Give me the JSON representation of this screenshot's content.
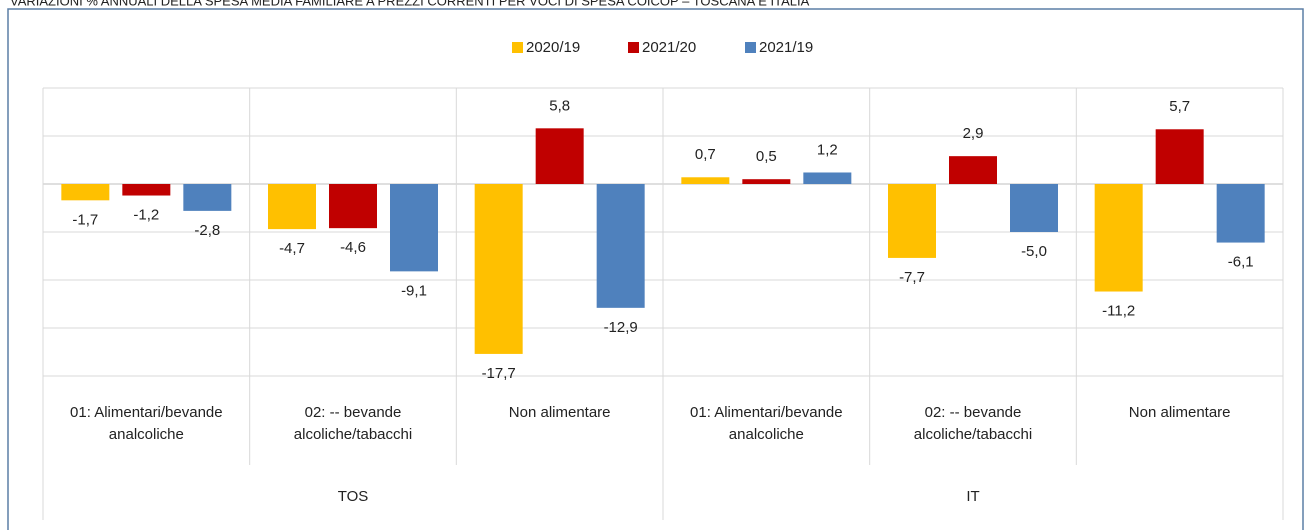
{
  "chart_data": {
    "type": "bar",
    "title": "VARIAZIONI % ANNUALI DELLA SPESA MEDIA FAMILIARE A PREZZI CORRENTI PER VOCI DI SPESA COICOP – TOSCANA E ITALIA",
    "groups": [
      {
        "name": "TOS",
        "size": 3
      },
      {
        "name": "IT",
        "size": 3
      }
    ],
    "categories": [
      "01: Alimentari/bevande analcoliche",
      "02: -- bevande alcoliche/tabacchi",
      "Non alimentare",
      "01: Alimentari/bevande analcoliche",
      "02: -- bevande alcoliche/tabacchi",
      "Non alimentare"
    ],
    "series": [
      {
        "name": "2020/19",
        "color": "#ffc000",
        "values": [
          -1.7,
          -4.7,
          -17.7,
          0.7,
          -7.7,
          -11.2
        ],
        "value_labels": [
          "-1,7",
          "-4,7",
          "-17,7",
          "0,7",
          "-7,7",
          "-11,2"
        ]
      },
      {
        "name": "2021/20",
        "color": "#c00000",
        "values": [
          -1.2,
          -4.6,
          5.8,
          0.5,
          2.9,
          5.7
        ],
        "value_labels": [
          "-1,2",
          "-4,6",
          "5,8",
          "0,5",
          "2,9",
          "5,7"
        ]
      },
      {
        "name": "2021/19",
        "color": "#4f81bd",
        "values": [
          -2.8,
          -9.1,
          -12.9,
          1.2,
          -5.0,
          -6.1
        ],
        "value_labels": [
          "-2,8",
          "-9,1",
          "-12,9",
          "1,2",
          "-5,0",
          "-6,1"
        ]
      }
    ],
    "ylim": [
      -20,
      10
    ],
    "yticks": [
      -20,
      -15,
      -10,
      -5,
      0,
      5,
      10
    ],
    "grid": true,
    "legend": "top"
  }
}
